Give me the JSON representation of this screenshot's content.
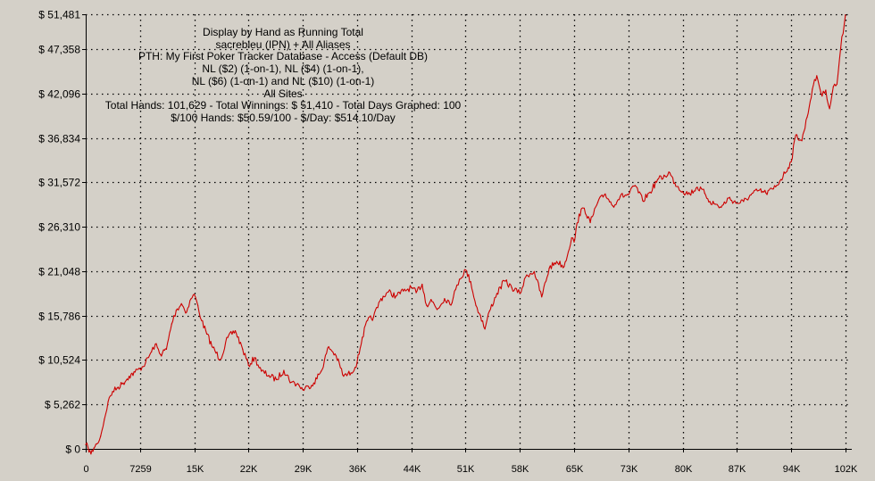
{
  "info_lines": [
    "Display by Hand as Running Total",
    "sacrebleu (IPN) + All Aliases",
    "PTH: My First Poker Tracker Database - Access (Default DB)",
    "NL ($2) (1-on-1), NL ($4) (1-on-1),",
    "NL ($6) (1-on-1) and NL ($10) (1-on-1)",
    "All Sites",
    "Total Hands: 101,629 - Total Winnings: $ 51,410 - Total Days Graphed: 100",
    "$/100 Hands: $50.59/100 - $/Day: $514.10/Day"
  ],
  "colors": {
    "background": "#d4d0c8",
    "line": "#cc0000",
    "grid": "#000000"
  },
  "chart_data": {
    "type": "line",
    "title": "",
    "xlabel": "",
    "ylabel": "",
    "grid": true,
    "xlim": [
      0,
      102000
    ],
    "ylim": [
      0,
      51481
    ],
    "y_ticks": [
      0,
      5262,
      10524,
      15786,
      21048,
      26310,
      31572,
      36834,
      42096,
      47358,
      51481
    ],
    "y_tick_labels": [
      "$ 0",
      "$ 5,262",
      "$ 10,524",
      "$ 15,786",
      "$ 21,048",
      "$ 26,310",
      "$ 31,572",
      "$ 36,834",
      "$ 42,096",
      "$ 47,358",
      "$ 51,481"
    ],
    "x_ticks": [
      0,
      7259,
      14518,
      21777,
      29036,
      36295,
      43554,
      50813,
      58072,
      65331,
      72590,
      79849,
      87108,
      94367,
      101629
    ],
    "x_tick_labels": [
      "0",
      "7259",
      "15K",
      "22K",
      "29K",
      "36K",
      "44K",
      "51K",
      "58K",
      "65K",
      "73K",
      "80K",
      "87K",
      "94K",
      "102K"
    ],
    "series": [
      {
        "x": [
          0,
          300,
          700,
          1100,
          1500,
          2000,
          2500,
          3000,
          3600,
          4200,
          5000,
          5800,
          6600,
          7259,
          8000,
          8800,
          9300,
          10000,
          10800,
          11500,
          12100,
          12800,
          13500,
          14100,
          14518,
          15000,
          15500,
          16200,
          17000,
          18000,
          19000,
          20000,
          21000,
          21777,
          22600,
          23500,
          24500,
          25500,
          26500,
          27500,
          28500,
          29036,
          29800,
          30500,
          31500,
          32500,
          33500,
          34500,
          35500,
          36295,
          37000,
          37700,
          38500,
          39500,
          40500,
          41500,
          42500,
          43554,
          44200,
          45000,
          45600,
          46200,
          47000,
          48000,
          49000,
          49500,
          50000,
          50813,
          51500,
          52200,
          52800,
          53400,
          54000,
          55000,
          56000,
          57000,
          58072,
          59000,
          60000,
          61000,
          62000,
          63000,
          64000,
          65000,
          65331,
          66000,
          66700,
          67500,
          68500,
          69500,
          70500,
          71500,
          72590,
          73500,
          74500,
          75500,
          76500,
          77500,
          78000,
          78800,
          79849,
          80800,
          81800,
          82800,
          83500,
          84200,
          85000,
          86000,
          87108,
          88000,
          89000,
          90000,
          91000,
          92000,
          93000,
          94367,
          95000,
          95800,
          96500,
          97200,
          97800,
          98500,
          99000,
          99500,
          100000,
          100500,
          101000,
          101629
        ],
        "values": [
          500,
          200,
          -600,
          100,
          600,
          1500,
          3500,
          5600,
          6800,
          7200,
          7800,
          8600,
          9100,
          9500,
          10200,
          11500,
          12400,
          11200,
          11800,
          14800,
          16400,
          17200,
          16200,
          17800,
          18300,
          17000,
          15200,
          13600,
          12000,
          10600,
          13200,
          14000,
          11800,
          9900,
          10800,
          9200,
          8700,
          8200,
          9300,
          7900,
          7600,
          7000,
          7400,
          7800,
          9200,
          12100,
          11000,
          8600,
          9000,
          10200,
          13200,
          15200,
          15600,
          17800,
          18600,
          18100,
          18700,
          19100,
          18500,
          19500,
          17000,
          17700,
          16500,
          17800,
          17300,
          18900,
          20100,
          21200,
          19800,
          17000,
          15800,
          14200,
          16300,
          18400,
          19900,
          19100,
          18400,
          20600,
          21000,
          18000,
          21400,
          22200,
          21600,
          25000,
          24500,
          27800,
          28500,
          26800,
          29200,
          30200,
          28800,
          29900,
          30100,
          31200,
          29400,
          30400,
          31900,
          32300,
          32800,
          31500,
          30500,
          30200,
          31000,
          30300,
          29300,
          29000,
          28600,
          29700,
          29100,
          29300,
          30100,
          30600,
          30300,
          30800,
          31900,
          34000,
          37200,
          36500,
          39300,
          42600,
          44200,
          41800,
          42500,
          40300,
          42900,
          43200,
          47500,
          51410
        ]
      }
    ]
  }
}
